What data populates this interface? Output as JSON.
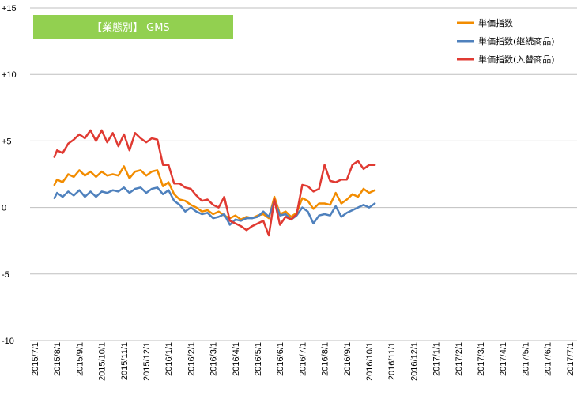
{
  "chart_data": {
    "type": "line",
    "title": "【業態別】 GMS",
    "title_bg_color": "#92d050",
    "xlabel": "",
    "ylabel": "",
    "ylim": [
      -10,
      15
    ],
    "y_ticks": [
      15,
      10,
      5,
      0,
      -5,
      -10
    ],
    "y_tick_labels": [
      "+15",
      "+10",
      "+5",
      "0",
      "-5",
      "-10"
    ],
    "x_tick_labels": [
      "2015/7/1",
      "2015/8/1",
      "2015/9/1",
      "2015/10/1",
      "2015/11/1",
      "2015/12/1",
      "2016/1/1",
      "2016/2/1",
      "2016/3/1",
      "2016/4/1",
      "2016/5/1",
      "2016/6/1",
      "2016/7/1",
      "2016/8/1",
      "2016/9/1",
      "2016/10/1",
      "2016/11/1",
      "2016/12/1",
      "2017/1/1",
      "2017/2/1",
      "2017/3/1",
      "2017/4/1",
      "2017/5/1",
      "2017/6/1",
      "2017/7/1"
    ],
    "x_unit": "month-index (0 = 2015/7/1)",
    "grid": "horizontal",
    "legend_position": "top-right",
    "series": [
      {
        "name": "単価指数",
        "color": "#f28c00",
        "points": [
          [
            0.88,
            1.7
          ],
          [
            1.0,
            2.1
          ],
          [
            1.25,
            1.9
          ],
          [
            1.5,
            2.5
          ],
          [
            1.75,
            2.3
          ],
          [
            2.0,
            2.8
          ],
          [
            2.25,
            2.4
          ],
          [
            2.5,
            2.7
          ],
          [
            2.75,
            2.3
          ],
          [
            3.0,
            2.7
          ],
          [
            3.25,
            2.4
          ],
          [
            3.5,
            2.5
          ],
          [
            3.75,
            2.4
          ],
          [
            4.0,
            3.1
          ],
          [
            4.25,
            2.2
          ],
          [
            4.5,
            2.7
          ],
          [
            4.75,
            2.8
          ],
          [
            5.0,
            2.4
          ],
          [
            5.25,
            2.7
          ],
          [
            5.5,
            2.8
          ],
          [
            5.75,
            1.6
          ],
          [
            6.0,
            1.9
          ],
          [
            6.25,
            1.0
          ],
          [
            6.5,
            0.6
          ],
          [
            6.75,
            0.5
          ],
          [
            7.0,
            0.2
          ],
          [
            7.25,
            0.0
          ],
          [
            7.5,
            -0.3
          ],
          [
            7.75,
            -0.2
          ],
          [
            8.0,
            -0.5
          ],
          [
            8.25,
            -0.3
          ],
          [
            8.5,
            -0.6
          ],
          [
            8.75,
            -0.8
          ],
          [
            9.0,
            -0.6
          ],
          [
            9.25,
            -0.9
          ],
          [
            9.5,
            -0.7
          ],
          [
            9.75,
            -0.8
          ],
          [
            10.0,
            -0.6
          ],
          [
            10.25,
            -0.5
          ],
          [
            10.5,
            -0.8
          ],
          [
            10.75,
            0.8
          ],
          [
            11.0,
            -0.5
          ],
          [
            11.25,
            -0.3
          ],
          [
            11.5,
            -0.7
          ],
          [
            11.75,
            -0.4
          ],
          [
            12.0,
            0.7
          ],
          [
            12.25,
            0.5
          ],
          [
            12.5,
            -0.1
          ],
          [
            12.75,
            0.3
          ],
          [
            13.0,
            0.3
          ],
          [
            13.25,
            0.2
          ],
          [
            13.5,
            1.1
          ],
          [
            13.75,
            0.3
          ],
          [
            14.0,
            0.6
          ],
          [
            14.25,
            1.0
          ],
          [
            14.5,
            0.8
          ],
          [
            14.75,
            1.4
          ],
          [
            15.0,
            1.1
          ],
          [
            15.25,
            1.3
          ]
        ]
      },
      {
        "name": "単価指数(継続商品)",
        "color": "#4f81bd",
        "points": [
          [
            0.88,
            0.7
          ],
          [
            1.0,
            1.1
          ],
          [
            1.25,
            0.8
          ],
          [
            1.5,
            1.2
          ],
          [
            1.75,
            0.9
          ],
          [
            2.0,
            1.3
          ],
          [
            2.25,
            0.8
          ],
          [
            2.5,
            1.2
          ],
          [
            2.75,
            0.8
          ],
          [
            3.0,
            1.2
          ],
          [
            3.25,
            1.1
          ],
          [
            3.5,
            1.3
          ],
          [
            3.75,
            1.2
          ],
          [
            4.0,
            1.5
          ],
          [
            4.25,
            1.1
          ],
          [
            4.5,
            1.4
          ],
          [
            4.75,
            1.5
          ],
          [
            5.0,
            1.1
          ],
          [
            5.25,
            1.4
          ],
          [
            5.5,
            1.5
          ],
          [
            5.75,
            1.0
          ],
          [
            6.0,
            1.3
          ],
          [
            6.25,
            0.5
          ],
          [
            6.5,
            0.2
          ],
          [
            6.75,
            -0.3
          ],
          [
            7.0,
            0.0
          ],
          [
            7.25,
            -0.3
          ],
          [
            7.5,
            -0.5
          ],
          [
            7.75,
            -0.4
          ],
          [
            8.0,
            -0.8
          ],
          [
            8.25,
            -0.7
          ],
          [
            8.5,
            -0.5
          ],
          [
            8.75,
            -1.3
          ],
          [
            9.0,
            -0.9
          ],
          [
            9.25,
            -1.0
          ],
          [
            9.5,
            -0.8
          ],
          [
            9.75,
            -0.8
          ],
          [
            10.0,
            -0.7
          ],
          [
            10.25,
            -0.3
          ],
          [
            10.5,
            -0.7
          ],
          [
            10.75,
            0.5
          ],
          [
            11.0,
            -0.6
          ],
          [
            11.25,
            -0.5
          ],
          [
            11.5,
            -0.9
          ],
          [
            11.75,
            -0.6
          ],
          [
            12.0,
            0.0
          ],
          [
            12.25,
            -0.3
          ],
          [
            12.5,
            -1.2
          ],
          [
            12.75,
            -0.6
          ],
          [
            13.0,
            -0.5
          ],
          [
            13.25,
            -0.6
          ],
          [
            13.5,
            0.1
          ],
          [
            13.75,
            -0.7
          ],
          [
            14.0,
            -0.4
          ],
          [
            14.25,
            -0.2
          ],
          [
            14.5,
            0.0
          ],
          [
            14.75,
            0.2
          ],
          [
            15.0,
            0.0
          ],
          [
            15.25,
            0.3
          ]
        ]
      },
      {
        "name": "単価指数(入替商品)",
        "color": "#e03a32",
        "points": [
          [
            0.88,
            3.8
          ],
          [
            1.0,
            4.3
          ],
          [
            1.25,
            4.1
          ],
          [
            1.5,
            4.8
          ],
          [
            1.75,
            5.1
          ],
          [
            2.0,
            5.5
          ],
          [
            2.25,
            5.2
          ],
          [
            2.5,
            5.8
          ],
          [
            2.75,
            5.0
          ],
          [
            3.0,
            5.8
          ],
          [
            3.25,
            4.9
          ],
          [
            3.5,
            5.6
          ],
          [
            3.75,
            4.6
          ],
          [
            4.0,
            5.5
          ],
          [
            4.25,
            4.3
          ],
          [
            4.5,
            5.6
          ],
          [
            4.75,
            5.2
          ],
          [
            5.0,
            4.9
          ],
          [
            5.25,
            5.2
          ],
          [
            5.5,
            5.1
          ],
          [
            5.75,
            3.2
          ],
          [
            6.0,
            3.2
          ],
          [
            6.25,
            1.8
          ],
          [
            6.5,
            1.8
          ],
          [
            6.75,
            1.5
          ],
          [
            7.0,
            1.4
          ],
          [
            7.25,
            0.9
          ],
          [
            7.5,
            0.5
          ],
          [
            7.75,
            0.6
          ],
          [
            8.0,
            0.2
          ],
          [
            8.25,
            0.0
          ],
          [
            8.5,
            0.8
          ],
          [
            8.75,
            -1.0
          ],
          [
            9.0,
            -1.2
          ],
          [
            9.25,
            -1.4
          ],
          [
            9.5,
            -1.7
          ],
          [
            9.75,
            -1.4
          ],
          [
            10.0,
            -1.2
          ],
          [
            10.25,
            -1.0
          ],
          [
            10.5,
            -2.1
          ],
          [
            10.75,
            0.6
          ],
          [
            11.0,
            -1.3
          ],
          [
            11.25,
            -0.7
          ],
          [
            11.5,
            -0.9
          ],
          [
            11.75,
            -0.5
          ],
          [
            12.0,
            1.7
          ],
          [
            12.25,
            1.6
          ],
          [
            12.5,
            1.2
          ],
          [
            12.75,
            1.4
          ],
          [
            13.0,
            3.2
          ],
          [
            13.25,
            2.0
          ],
          [
            13.5,
            1.9
          ],
          [
            13.75,
            2.1
          ],
          [
            14.0,
            2.1
          ],
          [
            14.25,
            3.2
          ],
          [
            14.5,
            3.5
          ],
          [
            14.75,
            2.9
          ],
          [
            15.0,
            3.2
          ],
          [
            15.25,
            3.2
          ]
        ]
      }
    ]
  }
}
